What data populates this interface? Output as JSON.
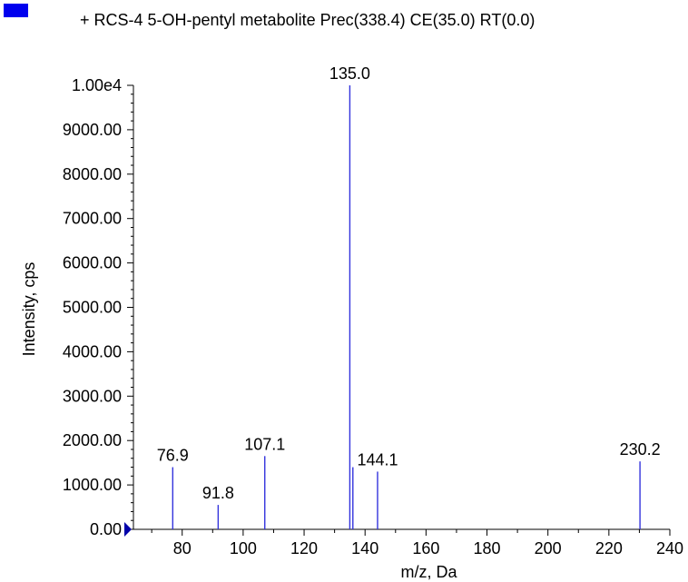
{
  "legend": {
    "text": "+ RCS-4 5-OH-pentyl metabolite Prec(338.4) CE(35.0) RT(0.0)",
    "swatch_color": "#0000ee"
  },
  "chart_data": {
    "type": "bar",
    "title": "",
    "xlabel": "m/z, Da",
    "ylabel": "Intensity, cps",
    "xlim": [
      64,
      240
    ],
    "ylim": [
      0,
      10000
    ],
    "x_ticks": [
      80,
      100,
      120,
      140,
      160,
      180,
      200,
      220,
      240
    ],
    "y_ticks": [
      {
        "value": 0,
        "label": "0.00"
      },
      {
        "value": 1000,
        "label": "1000.00"
      },
      {
        "value": 2000,
        "label": "2000.00"
      },
      {
        "value": 3000,
        "label": "3000.00"
      },
      {
        "value": 4000,
        "label": "4000.00"
      },
      {
        "value": 5000,
        "label": "5000.00"
      },
      {
        "value": 6000,
        "label": "6000.00"
      },
      {
        "value": 7000,
        "label": "7000.00"
      },
      {
        "value": 8000,
        "label": "8000.00"
      },
      {
        "value": 9000,
        "label": "9000.00"
      },
      {
        "value": 10000,
        "label": "1.00e4"
      }
    ],
    "series": [
      {
        "color": "#3333dd",
        "peaks": [
          {
            "x": 76.9,
            "y": 1400,
            "label": "76.9"
          },
          {
            "x": 91.8,
            "y": 550,
            "label": "91.8"
          },
          {
            "x": 107.1,
            "y": 1650,
            "label": "107.1"
          },
          {
            "x": 135.0,
            "y": 10000,
            "label": "135.0"
          },
          {
            "x": 136.0,
            "y": 1400,
            "label": ""
          },
          {
            "x": 144.1,
            "y": 1300,
            "label": "144.1"
          },
          {
            "x": 230.2,
            "y": 1530,
            "label": "230.2"
          }
        ]
      }
    ],
    "baseline_marker_color": "#0000aa"
  }
}
